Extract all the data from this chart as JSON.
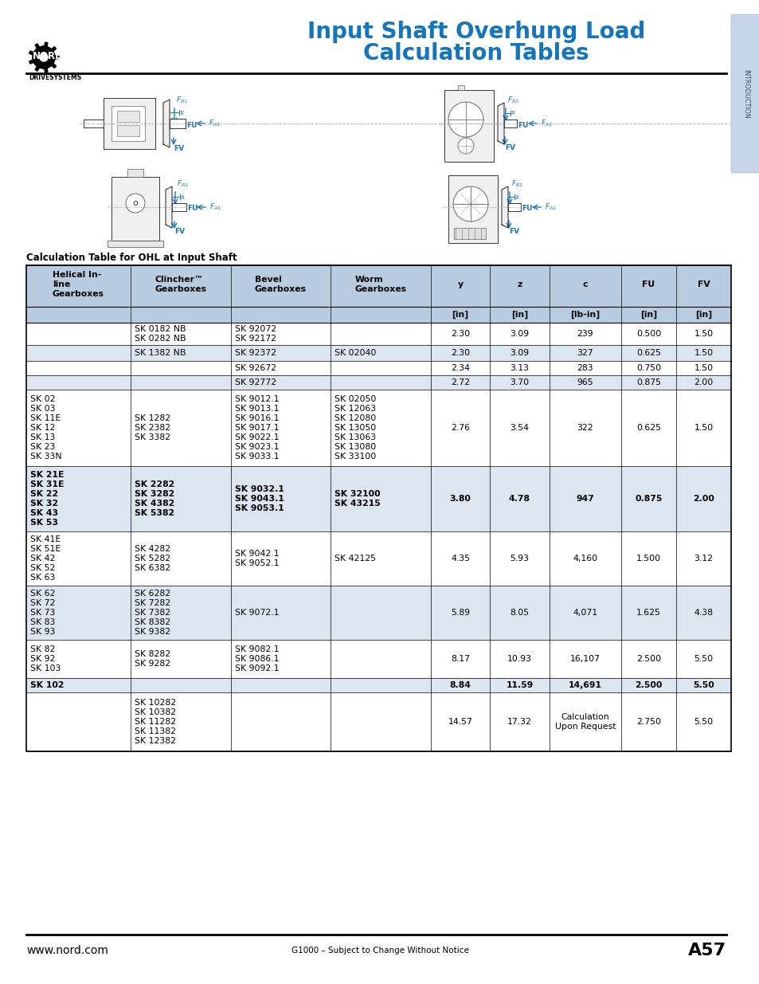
{
  "title_line1": "Input Shaft Overhung Load",
  "title_line2": "Calculation Tables",
  "title_color": "#1575bc",
  "page_label": "A57",
  "footer_left": "www.nord.com",
  "footer_center": "G1000 – Subject to Change Without Notice",
  "table_title": "Calculation Table for OHL at Input Shaft",
  "col_headers": [
    "Helical In-\nline\nGearboxes",
    "Clincher™\nGearboxes",
    "Bevel\nGearboxes",
    "Worm\nGearboxes",
    "y",
    "z",
    "c",
    "FU",
    "FV"
  ],
  "col_units": [
    "",
    "",
    "",
    "",
    "[in]",
    "[in]",
    "[lb-in]",
    "[in]",
    "[in]"
  ],
  "header_bg": "#b8cce0",
  "row_bg_light": "#dce6f1",
  "row_bg_white": "#ffffff",
  "blue": "#1575bc",
  "rows": [
    {
      "helical": "",
      "clincher": "SK 0182 NB\nSK 0282 NB",
      "bevel": "SK 92072\nSK 92172",
      "worm": "",
      "y": "2.30",
      "z": "3.09",
      "c": "239",
      "fu": "0.500",
      "fv": "1.50",
      "bg": "white",
      "bold": false
    },
    {
      "helical": "",
      "clincher": "SK 1382 NB",
      "bevel": "SK 92372",
      "worm": "SK 02040",
      "y": "2.30",
      "z": "3.09",
      "c": "327",
      "fu": "0.625",
      "fv": "1.50",
      "bg": "light",
      "bold": false
    },
    {
      "helical": "",
      "clincher": "",
      "bevel": "SK 92672",
      "worm": "",
      "y": "2.34",
      "z": "3.13",
      "c": "283",
      "fu": "0.750",
      "fv": "1.50",
      "bg": "white",
      "bold": false
    },
    {
      "helical": "",
      "clincher": "",
      "bevel": "SK 92772",
      "worm": "",
      "y": "2.72",
      "z": "3.70",
      "c": "965",
      "fu": "0.875",
      "fv": "2.00",
      "bg": "light",
      "bold": false
    },
    {
      "helical": "SK 02\nSK 03\nSK 11E\nSK 12\nSK 13\nSK 23\nSK 33N",
      "clincher": "SK 1282\nSK 2382\nSK 3382",
      "bevel": "SK 9012.1\nSK 9013.1\nSK 9016.1\nSK 9017.1\nSK 9022.1\nSK 9023.1\nSK 9033.1",
      "worm": "SK 02050\nSK 12063\nSK 12080\nSK 13050\nSK 13063\nSK 13080\nSK 33100",
      "y": "2.76",
      "z": "3.54",
      "c": "322",
      "fu": "0.625",
      "fv": "1.50",
      "bg": "white",
      "bold": false
    },
    {
      "helical": "SK 21E\nSK 31E\nSK 22\nSK 32\nSK 43\nSK 53",
      "clincher": "SK 2282\nSK 3282\nSK 4382\nSK 5382",
      "bevel": "SK 9032.1\nSK 9043.1\nSK 9053.1",
      "worm": "SK 32100\nSK 43215",
      "y": "3.80",
      "z": "4.78",
      "c": "947",
      "fu": "0.875",
      "fv": "2.00",
      "bg": "light",
      "bold": true
    },
    {
      "helical": "SK 41E\nSK 51E\nSK 42\nSK 52\nSK 63",
      "clincher": "SK 4282\nSK 5282\nSK 6382",
      "bevel": "SK 9042.1\nSK 9052.1",
      "worm": "SK 42125",
      "y": "4.35",
      "z": "5.93",
      "c": "4,160",
      "fu": "1.500",
      "fv": "3.12",
      "bg": "white",
      "bold": false
    },
    {
      "helical": "SK 62\nSK 72\nSK 73\nSK 83\nSK 93",
      "clincher": "SK 6282\nSK 7282\nSK 7382\nSK 8382\nSK 9382",
      "bevel": "SK 9072.1",
      "worm": "",
      "y": "5.89",
      "z": "8.05",
      "c": "4,071",
      "fu": "1.625",
      "fv": "4.38",
      "bg": "light",
      "bold": false
    },
    {
      "helical": "SK 82\nSK 92\nSK 103",
      "clincher": "SK 8282\nSK 9282",
      "bevel": "SK 9082.1\nSK 9086.1\nSK 9092.1",
      "worm": "",
      "y": "8.17",
      "z": "10.93",
      "c": "16,107",
      "fu": "2.500",
      "fv": "5.50",
      "bg": "white",
      "bold": false
    },
    {
      "helical": "SK 102",
      "clincher": "",
      "bevel": "",
      "worm": "",
      "y": "8.84",
      "z": "11.59",
      "c": "14,691",
      "fu": "2.500",
      "fv": "5.50",
      "bg": "light",
      "bold": true
    },
    {
      "helical": "",
      "clincher": "SK 10282\nSK 10382\nSK 11282\nSK 11382\nSK 12382",
      "bevel": "",
      "worm": "",
      "y": "14.57",
      "z": "17.32",
      "c": "Calculation\nUpon Request",
      "fu": "2.750",
      "fv": "5.50",
      "bg": "white",
      "bold": false
    }
  ]
}
